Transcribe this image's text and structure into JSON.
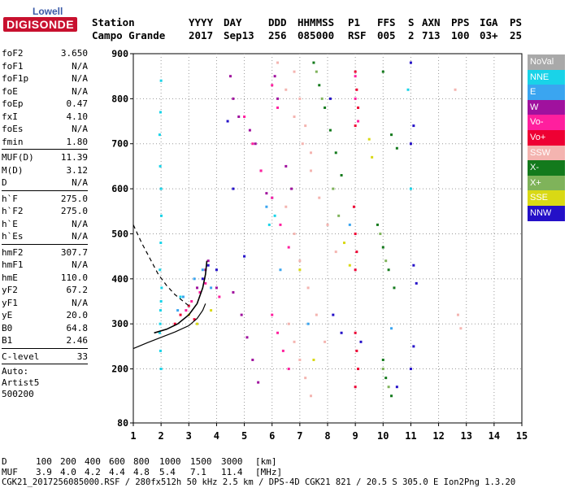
{
  "logo": {
    "brand_top": "Lowell",
    "brand_main": "DIGISONDE"
  },
  "header": {
    "labels": [
      "Station",
      "YYYY",
      "DAY",
      "DDD",
      "HHMMSS",
      "P1",
      "FFS",
      "S",
      "AXN",
      "PPS",
      "IGA",
      "PS"
    ],
    "values": [
      "Campo Grande",
      "2017",
      "Sep13",
      "256",
      "085000",
      "RSF",
      "005",
      "2",
      "713",
      "100",
      "03+",
      "25"
    ]
  },
  "parameters": {
    "group1": [
      {
        "name": "foF2",
        "value": "3.650"
      },
      {
        "name": "foF1",
        "value": "N/A"
      },
      {
        "name": "foF1p",
        "value": "N/A"
      },
      {
        "name": "foE",
        "value": "N/A"
      },
      {
        "name": "foEp",
        "value": "0.47"
      },
      {
        "name": "fxI",
        "value": "4.10"
      },
      {
        "name": "foEs",
        "value": "N/A"
      },
      {
        "name": "fmin",
        "value": "1.80"
      }
    ],
    "group2": [
      {
        "name": "MUF(D)",
        "value": "11.39"
      },
      {
        "name": "M(D)",
        "value": "3.12"
      },
      {
        "name": "D",
        "value": "N/A"
      }
    ],
    "group3": [
      {
        "name": "h`F",
        "value": "275.0"
      },
      {
        "name": "h`F2",
        "value": "275.0"
      },
      {
        "name": "h`E",
        "value": "N/A"
      },
      {
        "name": "h`Es",
        "value": "N/A"
      }
    ],
    "group4": [
      {
        "name": "hmF2",
        "value": "307.7"
      },
      {
        "name": "hmF1",
        "value": "N/A"
      },
      {
        "name": "hmE",
        "value": "110.0"
      },
      {
        "name": "yF2",
        "value": "67.2"
      },
      {
        "name": "yF1",
        "value": "N/A"
      },
      {
        "name": "yE",
        "value": "20.0"
      },
      {
        "name": "B0",
        "value": "64.8"
      },
      {
        "name": "B1",
        "value": "2.46"
      }
    ],
    "group5": [
      {
        "name": "C-level",
        "value": "33"
      }
    ],
    "auto": [
      "Auto:",
      "Artist5",
      "500200"
    ]
  },
  "legend": [
    {
      "label": "NoVal",
      "color": "#a9a9a9"
    },
    {
      "label": "NNE",
      "color": "#19d3e8"
    },
    {
      "label": "E",
      "color": "#3aa5f0"
    },
    {
      "label": "W",
      "color": "#a0119e"
    },
    {
      "label": "Vo-",
      "color": "#ff1f9e"
    },
    {
      "label": "Vo+",
      "color": "#ee0033"
    },
    {
      "label": "SSW",
      "color": "#f4b4b0"
    },
    {
      "label": "X-",
      "color": "#137a1c"
    },
    {
      "label": "X+",
      "color": "#7fb35a"
    },
    {
      "label": "SSE",
      "color": "#d9d914"
    },
    {
      "label": "NNW",
      "color": "#2410c8"
    }
  ],
  "chart_data": {
    "type": "scatter",
    "xlim": [
      1,
      15
    ],
    "ylim": [
      80,
      900
    ],
    "x_ticks": [
      "1",
      "2",
      "3",
      "4",
      "5",
      "6",
      "7",
      "8",
      "9",
      "10",
      "11",
      "12",
      "13",
      "14",
      "15"
    ],
    "y_ticks": [
      "80",
      "200",
      "300",
      "400",
      "500",
      "600",
      "700",
      "800",
      "900"
    ],
    "grid": true,
    "series": [
      {
        "name": "NNE",
        "color": "#19d3e8",
        "points": [
          [
            1.95,
            280
          ],
          [
            1.97,
            300
          ],
          [
            1.98,
            330
          ],
          [
            2.0,
            350
          ],
          [
            2.02,
            380
          ],
          [
            1.96,
            420
          ],
          [
            1.99,
            480
          ],
          [
            2.01,
            540
          ],
          [
            2.0,
            600
          ],
          [
            1.97,
            650
          ],
          [
            1.95,
            720
          ],
          [
            1.98,
            770
          ],
          [
            2.0,
            840
          ],
          [
            1.98,
            240
          ],
          [
            2.0,
            200
          ],
          [
            2.7,
            360
          ],
          [
            3.0,
            340
          ],
          [
            5.9,
            520
          ],
          [
            6.1,
            540
          ],
          [
            11.0,
            600
          ],
          [
            10.9,
            820
          ]
        ]
      },
      {
        "name": "E",
        "color": "#3aa5f0",
        "points": [
          [
            2.6,
            330
          ],
          [
            2.8,
            360
          ],
          [
            3.2,
            400
          ],
          [
            3.5,
            420
          ],
          [
            3.8,
            380
          ],
          [
            5.8,
            560
          ],
          [
            6.0,
            580
          ],
          [
            6.3,
            420
          ],
          [
            7.3,
            300
          ],
          [
            8.8,
            520
          ],
          [
            10.3,
            290
          ]
        ]
      },
      {
        "name": "W",
        "color": "#a0119e",
        "points": [
          [
            3.3,
            380
          ],
          [
            3.6,
            420
          ],
          [
            3.7,
            440
          ],
          [
            4.0,
            380
          ],
          [
            4.5,
            850
          ],
          [
            4.6,
            800
          ],
          [
            4.8,
            760
          ],
          [
            5.2,
            730
          ],
          [
            5.4,
            700
          ],
          [
            5.6,
            640
          ],
          [
            5.8,
            590
          ],
          [
            6.1,
            850
          ],
          [
            6.2,
            800
          ],
          [
            6.5,
            650
          ],
          [
            6.7,
            600
          ],
          [
            4.6,
            370
          ],
          [
            4.9,
            320
          ],
          [
            5.1,
            270
          ],
          [
            5.3,
            220
          ],
          [
            5.5,
            170
          ]
        ]
      },
      {
        "name": "Vo-",
        "color": "#ff1f9e",
        "points": [
          [
            2.9,
            330
          ],
          [
            3.1,
            350
          ],
          [
            3.4,
            370
          ],
          [
            3.6,
            390
          ],
          [
            4.1,
            360
          ],
          [
            5.0,
            760
          ],
          [
            5.3,
            700
          ],
          [
            5.6,
            640
          ],
          [
            6.0,
            580
          ],
          [
            6.3,
            520
          ],
          [
            6.6,
            470
          ],
          [
            6.0,
            320
          ],
          [
            6.2,
            280
          ],
          [
            6.4,
            240
          ],
          [
            6.6,
            200
          ],
          [
            9.0,
            850
          ],
          [
            9.0,
            800
          ],
          [
            9.1,
            750
          ],
          [
            6.0,
            830
          ],
          [
            6.2,
            780
          ]
        ]
      },
      {
        "name": "Vo+",
        "color": "#ee0033",
        "points": [
          [
            2.5,
            300
          ],
          [
            2.7,
            320
          ],
          [
            3.0,
            340
          ],
          [
            3.2,
            310
          ],
          [
            9.0,
            860
          ],
          [
            9.05,
            820
          ],
          [
            9.1,
            780
          ],
          [
            9.0,
            740
          ],
          [
            8.95,
            560
          ],
          [
            9.0,
            500
          ],
          [
            9.05,
            460
          ],
          [
            9.0,
            420
          ],
          [
            9.0,
            280
          ],
          [
            9.05,
            240
          ],
          [
            9.1,
            200
          ],
          [
            9.0,
            160
          ]
        ]
      },
      {
        "name": "SSW",
        "color": "#f4b4b0",
        "points": [
          [
            6.2,
            880
          ],
          [
            6.5,
            820
          ],
          [
            6.8,
            760
          ],
          [
            7.1,
            700
          ],
          [
            7.4,
            640
          ],
          [
            7.7,
            580
          ],
          [
            8.0,
            520
          ],
          [
            8.3,
            460
          ],
          [
            6.8,
            860
          ],
          [
            7.0,
            800
          ],
          [
            7.2,
            740
          ],
          [
            7.4,
            680
          ],
          [
            6.5,
            560
          ],
          [
            6.8,
            500
          ],
          [
            7.0,
            440
          ],
          [
            7.3,
            380
          ],
          [
            7.6,
            320
          ],
          [
            7.9,
            260
          ],
          [
            6.6,
            300
          ],
          [
            6.8,
            260
          ],
          [
            7.0,
            220
          ],
          [
            7.2,
            180
          ],
          [
            7.4,
            140
          ],
          [
            12.8,
            290
          ],
          [
            12.7,
            320
          ],
          [
            12.6,
            820
          ]
        ]
      },
      {
        "name": "X-",
        "color": "#137a1c",
        "points": [
          [
            7.5,
            880
          ],
          [
            7.7,
            830
          ],
          [
            7.9,
            780
          ],
          [
            8.1,
            730
          ],
          [
            8.3,
            680
          ],
          [
            8.5,
            630
          ],
          [
            9.8,
            520
          ],
          [
            10.0,
            470
          ],
          [
            10.2,
            420
          ],
          [
            10.4,
            380
          ],
          [
            10.0,
            220
          ],
          [
            10.1,
            180
          ],
          [
            10.3,
            140
          ],
          [
            10.0,
            860
          ],
          [
            10.3,
            720
          ],
          [
            10.5,
            690
          ]
        ]
      },
      {
        "name": "X+",
        "color": "#7fb35a",
        "points": [
          [
            7.6,
            860
          ],
          [
            7.8,
            800
          ],
          [
            8.2,
            600
          ],
          [
            8.4,
            540
          ],
          [
            9.9,
            500
          ],
          [
            10.1,
            440
          ],
          [
            10.0,
            200
          ],
          [
            10.2,
            160
          ]
        ]
      },
      {
        "name": "SSE",
        "color": "#d9d914",
        "points": [
          [
            3.0,
            320
          ],
          [
            3.3,
            300
          ],
          [
            3.8,
            330
          ],
          [
            7.0,
            420
          ],
          [
            7.5,
            220
          ],
          [
            8.6,
            480
          ],
          [
            8.8,
            430
          ],
          [
            9.5,
            710
          ],
          [
            9.6,
            670
          ]
        ]
      },
      {
        "name": "NNW",
        "color": "#2410c8",
        "points": [
          [
            3.5,
            400
          ],
          [
            3.7,
            430
          ],
          [
            4.0,
            420
          ],
          [
            4.4,
            750
          ],
          [
            4.6,
            600
          ],
          [
            5.0,
            450
          ],
          [
            8.1,
            800
          ],
          [
            8.2,
            320
          ],
          [
            8.5,
            280
          ],
          [
            9.2,
            260
          ],
          [
            10.5,
            160
          ],
          [
            11.0,
            880
          ],
          [
            11.1,
            740
          ],
          [
            11.0,
            700
          ],
          [
            11.1,
            430
          ],
          [
            11.2,
            390
          ],
          [
            11.1,
            250
          ],
          [
            11.0,
            200
          ]
        ]
      }
    ],
    "fitted_trace": {
      "x": [
        1.75,
        2.2,
        2.6,
        3.0,
        3.3,
        3.5,
        3.6,
        3.65
      ],
      "y": [
        280,
        288,
        300,
        320,
        345,
        380,
        410,
        440
      ]
    },
    "profile_dashed": {
      "x": [
        1.0,
        1.3,
        1.6,
        1.9,
        2.2,
        2.5,
        2.8,
        3.0
      ],
      "y": [
        520,
        480,
        445,
        410,
        385,
        365,
        350,
        340
      ]
    },
    "profile_solid": {
      "x": [
        1.0,
        1.5,
        2.0,
        2.5,
        3.0,
        3.3,
        3.5,
        3.6
      ],
      "y": [
        245,
        258,
        270,
        282,
        296,
        312,
        330,
        345
      ]
    },
    "footer": {
      "d_label": "D",
      "d_values": [
        "100",
        "200",
        "400",
        "600",
        "800",
        "1000",
        "1500",
        "3000"
      ],
      "d_unit": "[km]",
      "muf_label": "MUF",
      "muf_values": [
        "3.9",
        "4.0",
        "4.2",
        "4.4",
        "4.8",
        "5.4",
        "7.1",
        "11.4"
      ],
      "muf_unit": "[MHz]",
      "info": "CGK21_2017256085000.RSF / 280fx512h 50 kHz 2.5 km / DPS-4D CGK21 821 / 20.5 S 305.0 E Ion2Png 1.3.20"
    }
  }
}
